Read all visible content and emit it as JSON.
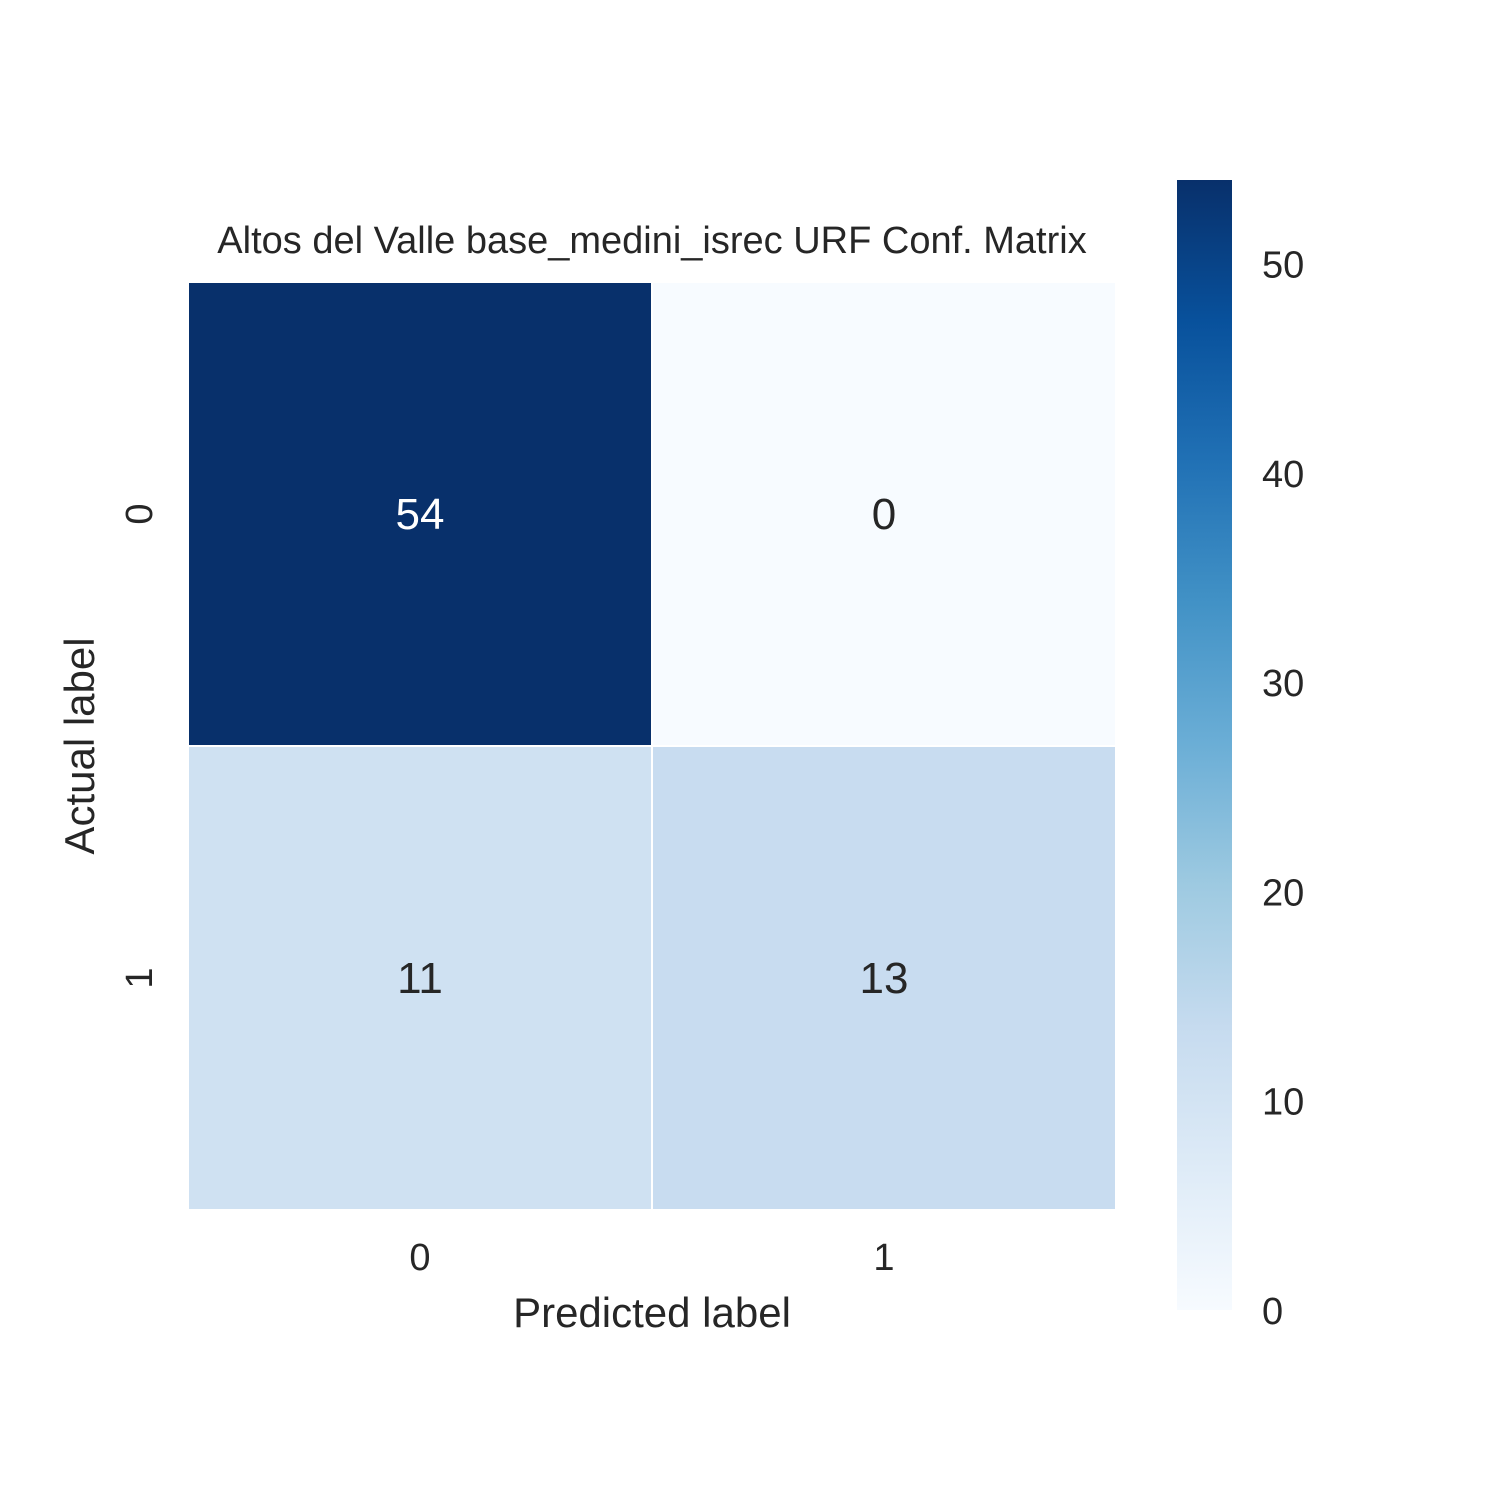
{
  "chart_data": {
    "type": "heatmap",
    "title": "Altos del Valle base_medini_isrec URF Conf. Matrix",
    "xlabel": "Predicted label",
    "ylabel": "Actual label",
    "x_categories": [
      "0",
      "1"
    ],
    "y_categories": [
      "0",
      "1"
    ],
    "matrix": [
      [
        54,
        0
      ],
      [
        11,
        13
      ]
    ],
    "colormap": "Blues",
    "colorbar": {
      "range": [
        0,
        54
      ],
      "ticks": [
        0,
        10,
        20,
        30,
        40,
        50
      ]
    },
    "colors": {
      "text_dark": "#262626",
      "text_light": "#ffffff",
      "grid_line": "#ffffff"
    }
  }
}
